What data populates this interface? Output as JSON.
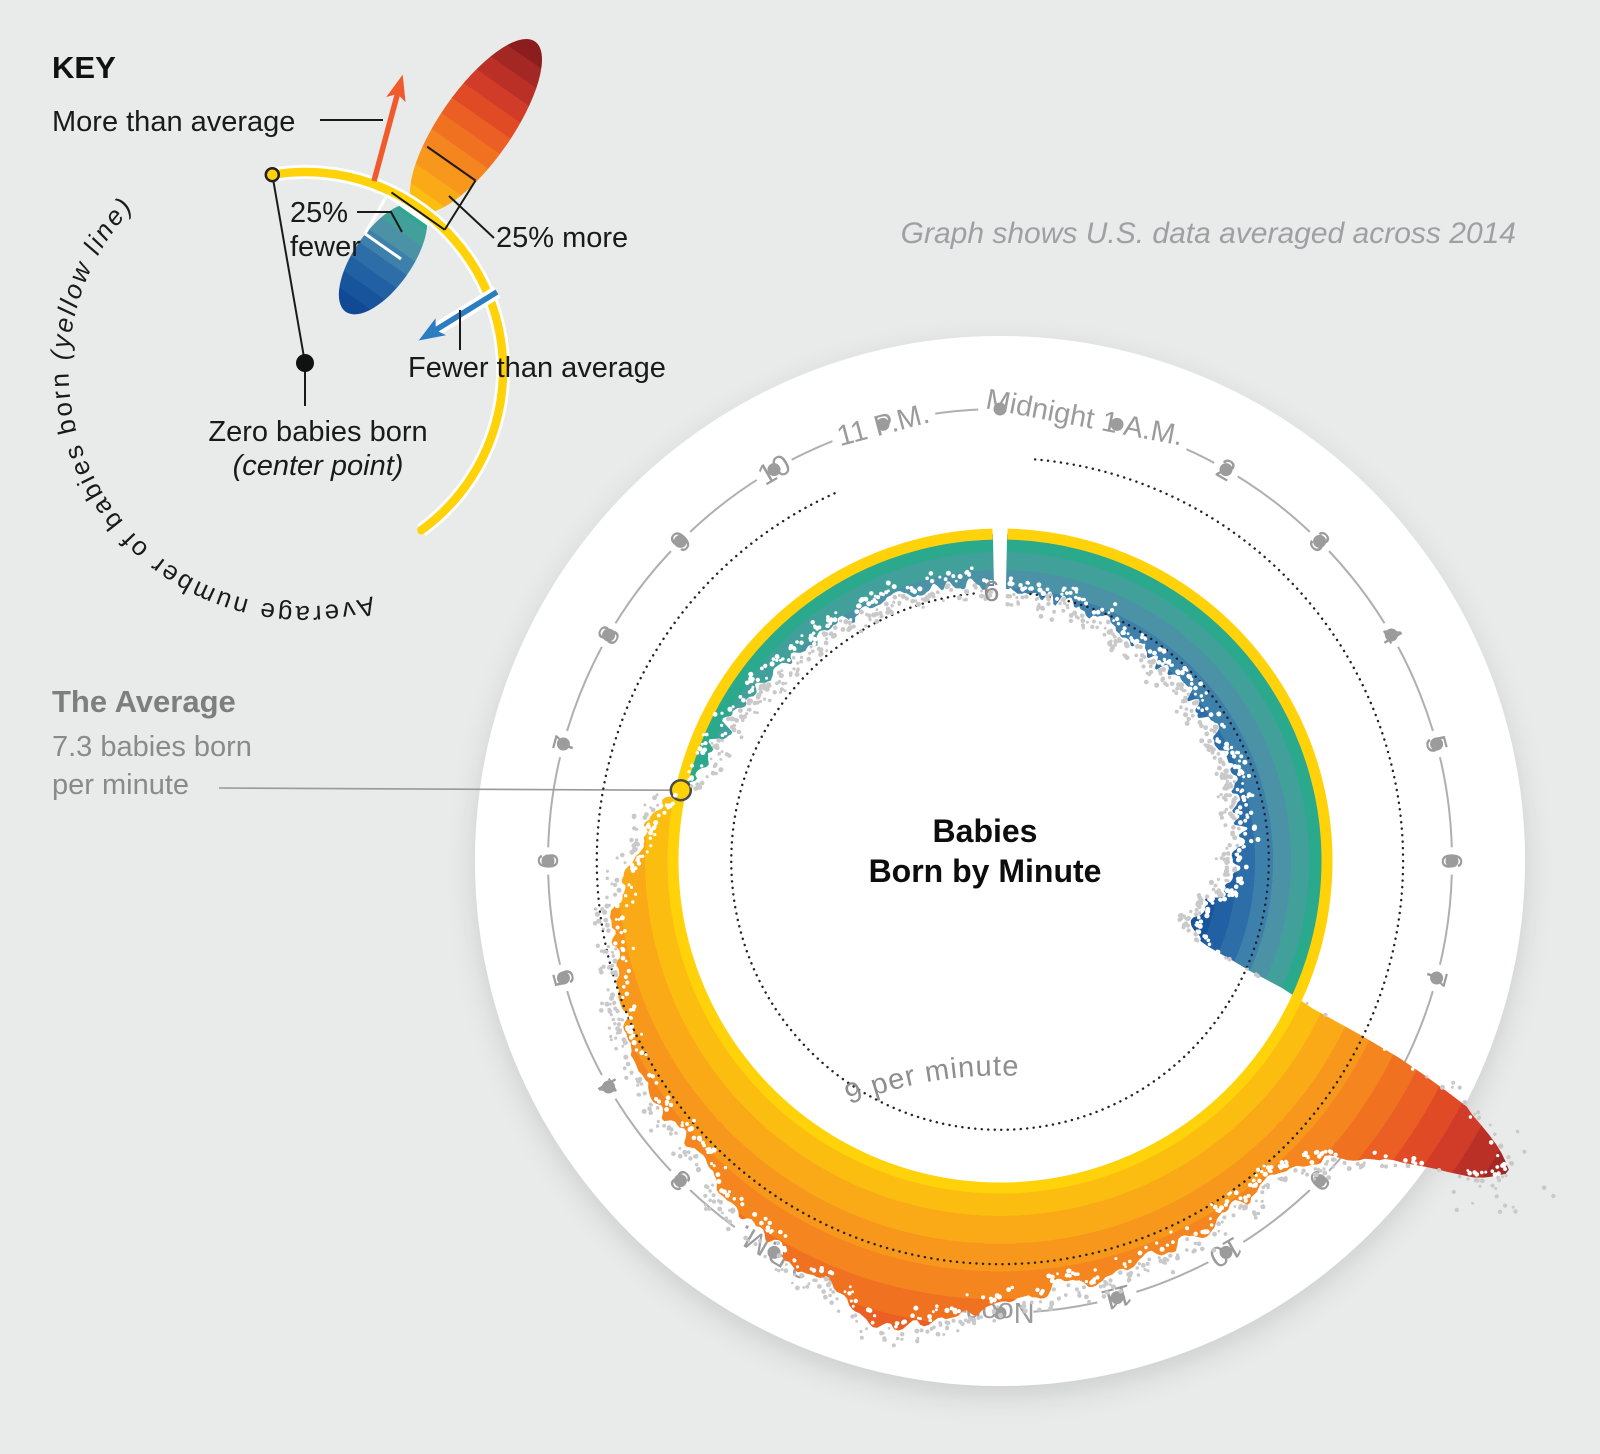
{
  "subtitle": "Graph shows U.S. data averaged across 2014",
  "key": {
    "heading": "KEY",
    "more_label": "More than average",
    "fewer_label": "Fewer than average",
    "pct_fewer_line1": "25%",
    "pct_fewer_line2": "fewer",
    "pct_more": "25% more",
    "zero_line1": "Zero babies born",
    "zero_line2": "(center point)",
    "avg_arc_text": "Average number of babies born ",
    "avg_arc_text_italic": "(yellow line)"
  },
  "average_callout": {
    "heading": "The Average",
    "line1": "7.3 babies born",
    "line2": "per minute"
  },
  "center_title": {
    "line1": "Babies",
    "line2": "Born by Minute"
  },
  "ring_labels": {
    "outer": "9 per minute",
    "inner": "6"
  },
  "colors": {
    "background": "#e9eaea",
    "disc": "#ffffff",
    "average_ring": "#FFD20A",
    "marker_stroke": "#4a4a4a",
    "hour_ring": "#AFAFAF",
    "hour_dot": "#9C9C9C",
    "hour_text": "#9B9B9B",
    "dotted_gridline": "#222222",
    "dot_on_color": "#FFFFFF",
    "dot_on_white": "#C9C9C9",
    "orange_scale": [
      "#FCBD11",
      "#FAAA17",
      "#F7981C",
      "#F4851F",
      "#F07221",
      "#EB5F24",
      "#E04B26",
      "#D03C27",
      "#BB3026",
      "#A32723",
      "#8B1D1F"
    ],
    "blue_scale": [
      "#2AA98C",
      "#41A09A",
      "#4C92A7",
      "#3E80AC",
      "#2E6EA8",
      "#2161A3",
      "#18549C",
      "#114A94"
    ],
    "more_arrow": "#F15B2B",
    "fewer_arrow": "#2B7CC1"
  },
  "chart_data": {
    "type": "area",
    "subtype": "radial-24h-clock",
    "title": "Babies Born by Minute",
    "units": "babies born per minute",
    "average": 7.3,
    "angle_axis": "24-hour clock, midnight at top, clockwise",
    "radial_axis": {
      "zero": "center point",
      "average_yellow_ring": 7.3,
      "dotted_gridlines": [
        6,
        9
      ]
    },
    "band_step_above_fraction": 0.085,
    "band_step_below_fraction": 0.055,
    "edge_noise_amplitude": 0.17,
    "clock_labels": [
      {
        "label": "Midnight 1 A.M.",
        "hour": 0.72
      },
      {
        "label": "2",
        "hour": 2
      },
      {
        "label": "3",
        "hour": 3
      },
      {
        "label": "4",
        "hour": 4
      },
      {
        "label": "5",
        "hour": 5
      },
      {
        "label": "6",
        "hour": 6
      },
      {
        "label": "7",
        "hour": 7
      },
      {
        "label": "9",
        "hour": 9
      },
      {
        "label": "10",
        "hour": 10
      },
      {
        "label": "11",
        "hour": 11
      },
      {
        "label": "Noon",
        "hour": 12
      },
      {
        "label": "2 P.M.",
        "hour": 14
      },
      {
        "label": "3",
        "hour": 15
      },
      {
        "label": "4",
        "hour": 16
      },
      {
        "label": "5",
        "hour": 17
      },
      {
        "label": "6",
        "hour": 18
      },
      {
        "label": "7",
        "hour": 19
      },
      {
        "label": "8",
        "hour": 20
      },
      {
        "label": "9",
        "hour": 21
      },
      {
        "label": "10",
        "hour": 22
      },
      {
        "label": "11 P.M.",
        "hour": 23
      }
    ],
    "points": [
      [
        0,
        6.2
      ],
      [
        0.5,
        6.05
      ],
      [
        1,
        5.95
      ],
      [
        1.5,
        5.85
      ],
      [
        2,
        5.75
      ],
      [
        2.5,
        5.7
      ],
      [
        3,
        5.65
      ],
      [
        3.5,
        5.6
      ],
      [
        4,
        5.55
      ],
      [
        4.5,
        5.5
      ],
      [
        5,
        5.45
      ],
      [
        5.5,
        5.4
      ],
      [
        6,
        5.3
      ],
      [
        6.3,
        5.15
      ],
      [
        6.6,
        4.9
      ],
      [
        6.9,
        4.6
      ],
      [
        7.2,
        4.5
      ],
      [
        7.45,
        4.8
      ],
      [
        7.58,
        6.0
      ],
      [
        7.65,
        7.3
      ],
      [
        7.72,
        9.3
      ],
      [
        7.85,
        11.7
      ],
      [
        8.0,
        13.0
      ],
      [
        8.1,
        13.3
      ],
      [
        8.25,
        12.7
      ],
      [
        8.4,
        11.5
      ],
      [
        8.6,
        10.5
      ],
      [
        8.8,
        9.9
      ],
      [
        9,
        9.6
      ],
      [
        9.3,
        9.2
      ],
      [
        9.6,
        9.3
      ],
      [
        10,
        9.5
      ],
      [
        10.5,
        9.4
      ],
      [
        11,
        9.5
      ],
      [
        11.5,
        9.6
      ],
      [
        12,
        9.9
      ],
      [
        12.5,
        10.3
      ],
      [
        12.8,
        10.7
      ],
      [
        13,
        10.8
      ],
      [
        13.2,
        10.6
      ],
      [
        13.5,
        10.2
      ],
      [
        14,
        9.9
      ],
      [
        14.5,
        9.7
      ],
      [
        15,
        9.5
      ],
      [
        15.5,
        9.35
      ],
      [
        16,
        9.2
      ],
      [
        16.5,
        9.0
      ],
      [
        17,
        8.85
      ],
      [
        17.5,
        8.65
      ],
      [
        18,
        8.3
      ],
      [
        18.5,
        7.7
      ],
      [
        18.83,
        7.3
      ],
      [
        19.2,
        7.0
      ],
      [
        19.6,
        6.85
      ],
      [
        20,
        6.75
      ],
      [
        20.5,
        6.6
      ],
      [
        21,
        6.5
      ],
      [
        21.5,
        6.42
      ],
      [
        22,
        6.36
      ],
      [
        22.5,
        6.3
      ],
      [
        23,
        6.27
      ],
      [
        23.5,
        6.23
      ],
      [
        24,
        6.2
      ]
    ]
  }
}
